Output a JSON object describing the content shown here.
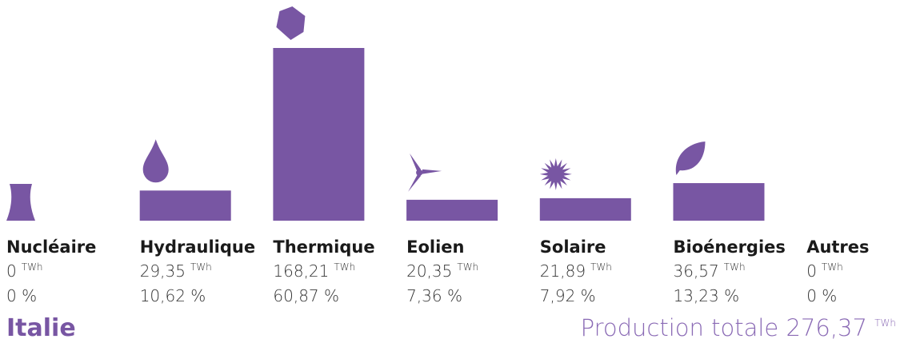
{
  "chart_data": {
    "type": "bar",
    "title": "Italie",
    "categories": [
      "Nucléaire",
      "Hydraulique",
      "Thermique",
      "Eolien",
      "Solaire",
      "Bioénergies",
      "Autres"
    ],
    "values": [
      0,
      29.35,
      168.21,
      20.35,
      21.89,
      36.57,
      0
    ],
    "value_labels": [
      "0",
      "29,35",
      "168,21",
      "20,35",
      "21,89",
      "36,57",
      "0"
    ],
    "unit": "TWh",
    "percentages": [
      0,
      10.62,
      60.87,
      7.36,
      7.92,
      13.23,
      0
    ],
    "percentage_labels": [
      "0 %",
      "10,62 %",
      "60,87 %",
      "7,36 %",
      "7,92 %",
      "13,23 %",
      "0 %"
    ],
    "total_text": "Production totale",
    "total": 276.37,
    "total_label": "276,37",
    "color": "#7856a3"
  }
}
